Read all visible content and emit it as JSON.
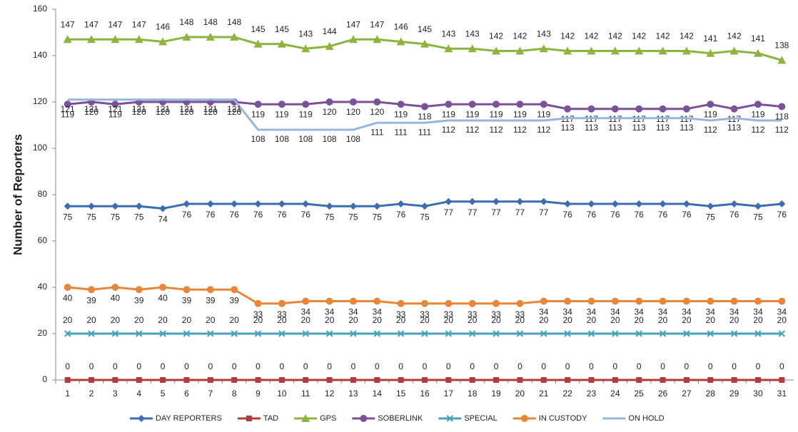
{
  "chart_data": {
    "type": "line",
    "y_label": "Number of Reporters",
    "categories": [
      1,
      2,
      3,
      4,
      5,
      6,
      7,
      8,
      9,
      10,
      11,
      12,
      13,
      14,
      15,
      16,
      17,
      18,
      19,
      20,
      21,
      22,
      23,
      24,
      25,
      26,
      27,
      28,
      29,
      30,
      31
    ],
    "ylim": [
      0,
      160
    ],
    "yticks": [
      0,
      20,
      40,
      60,
      80,
      100,
      120,
      140,
      160
    ],
    "legend": "bottom",
    "series": [
      {
        "name": "DAY REPORTERS",
        "color": "#3b6db3",
        "marker": "diamond",
        "values": [
          75,
          75,
          75,
          75,
          74,
          76,
          76,
          76,
          76,
          76,
          76,
          75,
          75,
          75,
          76,
          75,
          77,
          77,
          77,
          77,
          77,
          76,
          76,
          76,
          76,
          76,
          76,
          75,
          76,
          75,
          76
        ]
      },
      {
        "name": "TAD",
        "color": "#b23b3b",
        "marker": "square",
        "values": [
          0,
          0,
          0,
          0,
          0,
          0,
          0,
          0,
          0,
          0,
          0,
          0,
          0,
          0,
          0,
          0,
          0,
          0,
          0,
          0,
          0,
          0,
          0,
          0,
          0,
          0,
          0,
          0,
          0,
          0,
          0
        ]
      },
      {
        "name": "GPS",
        "color": "#8db43e",
        "marker": "triangle",
        "values": [
          147,
          147,
          147,
          147,
          146,
          148,
          148,
          148,
          145,
          145,
          143,
          144,
          147,
          147,
          146,
          145,
          143,
          143,
          142,
          142,
          143,
          142,
          142,
          142,
          142,
          142,
          142,
          141,
          142,
          141,
          138
        ]
      },
      {
        "name": "SOBERLINK",
        "color": "#7b5199",
        "marker": "circle",
        "values": [
          119,
          120,
          119,
          120,
          120,
          120,
          120,
          120,
          119,
          119,
          119,
          120,
          120,
          120,
          119,
          118,
          119,
          119,
          119,
          119,
          119,
          117,
          117,
          117,
          117,
          117,
          117,
          119,
          117,
          119,
          118
        ]
      },
      {
        "name": "SPECIAL",
        "color": "#44a3b8",
        "marker": "x",
        "values": [
          20,
          20,
          20,
          20,
          20,
          20,
          20,
          20,
          20,
          20,
          20,
          20,
          20,
          20,
          20,
          20,
          20,
          20,
          20,
          20,
          20,
          20,
          20,
          20,
          20,
          20,
          20,
          20,
          20,
          20,
          20
        ]
      },
      {
        "name": "IN CUSTODY",
        "color": "#e8873a",
        "marker": "circle",
        "values": [
          40,
          39,
          40,
          39,
          40,
          39,
          39,
          39,
          33,
          33,
          34,
          34,
          34,
          34,
          33,
          33,
          33,
          33,
          33,
          33,
          34,
          34,
          34,
          34,
          34,
          34,
          34,
          34,
          34,
          34,
          34
        ]
      },
      {
        "name": "ON HOLD",
        "color": "#98b5da",
        "marker": "none",
        "values": [
          121,
          121,
          121,
          121,
          121,
          121,
          121,
          121,
          108,
          108,
          108,
          108,
          108,
          111,
          111,
          111,
          112,
          112,
          112,
          112,
          112,
          113,
          113,
          113,
          113,
          113,
          113,
          112,
          113,
          112,
          112
        ]
      }
    ]
  }
}
